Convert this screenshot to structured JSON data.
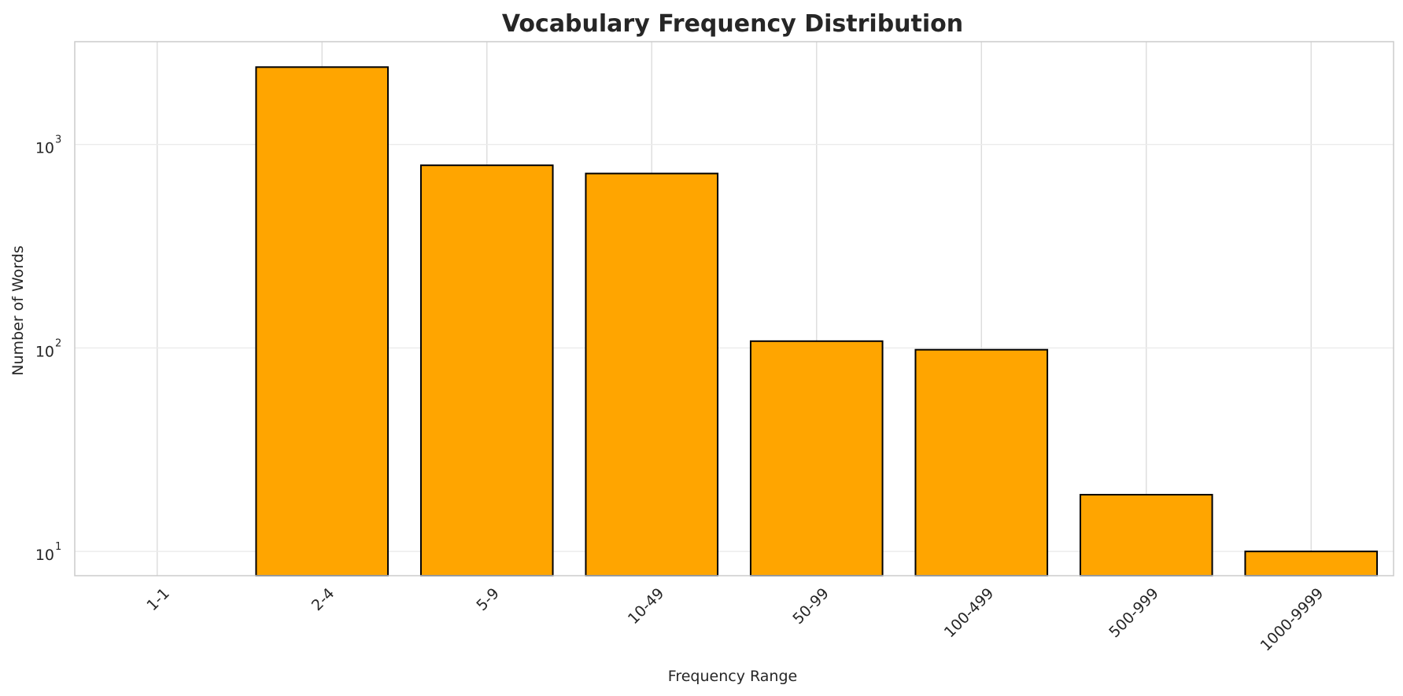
{
  "chart_data": {
    "type": "bar",
    "title": "Vocabulary Frequency Distribution",
    "xlabel": "Frequency Range",
    "ylabel": "Number of Words",
    "y_scale": "log",
    "ylim": [
      7.6,
      3200
    ],
    "y_ticks": [
      10,
      100,
      1000
    ],
    "y_tick_labels": [
      {
        "base": "10",
        "exp": "1"
      },
      {
        "base": "10",
        "exp": "2"
      },
      {
        "base": "10",
        "exp": "3"
      }
    ],
    "categories": [
      "1-1",
      "2-4",
      "5-9",
      "10-49",
      "50-99",
      "100-499",
      "500-999",
      "1000-9999"
    ],
    "values": [
      0,
      2400,
      790,
      720,
      108,
      98,
      19,
      10
    ],
    "grid": true,
    "legend": "none",
    "colors": {
      "bar_fill": "#FFA500",
      "bar_edge": "#000000",
      "grid": "#DCDCDC",
      "axes_edge": "#CCCCCC",
      "text": "#262626"
    }
  }
}
